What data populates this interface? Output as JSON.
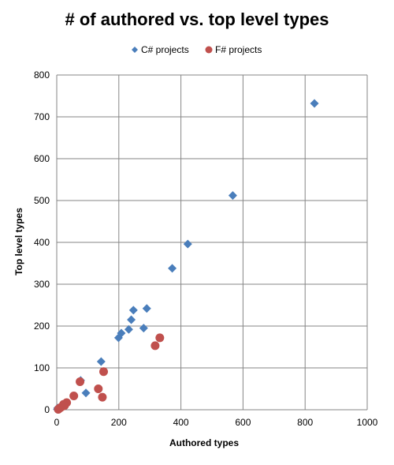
{
  "chart_data": {
    "type": "scatter",
    "title": "# of authored vs. top level types",
    "xlabel": "Authored types",
    "ylabel": "Top level types",
    "xlim": [
      0,
      1000
    ],
    "ylim": [
      0,
      800
    ],
    "xticks": [
      0,
      200,
      400,
      600,
      800,
      1000
    ],
    "yticks": [
      0,
      100,
      200,
      300,
      400,
      500,
      600,
      700,
      800
    ],
    "grid": true,
    "legend_position": "top",
    "series": [
      {
        "name": "C# projects",
        "marker": "diamond",
        "color": "#4a7ebb",
        "points": [
          [
            830,
            732
          ],
          [
            567,
            512
          ],
          [
            422,
            396
          ],
          [
            372,
            338
          ],
          [
            290,
            242
          ],
          [
            247,
            238
          ],
          [
            240,
            215
          ],
          [
            232,
            192
          ],
          [
            280,
            195
          ],
          [
            208,
            183
          ],
          [
            199,
            172
          ],
          [
            143,
            115
          ],
          [
            94,
            40
          ],
          [
            77,
            70
          ],
          [
            3,
            4
          ],
          [
            2,
            1
          ]
        ]
      },
      {
        "name": "F# projects",
        "marker": "circle",
        "color": "#c0504d",
        "points": [
          [
            332,
            172
          ],
          [
            317,
            153
          ],
          [
            151,
            91
          ],
          [
            134,
            50
          ],
          [
            147,
            30
          ],
          [
            75,
            67
          ],
          [
            55,
            33
          ],
          [
            32,
            17
          ],
          [
            25,
            10
          ],
          [
            18,
            8
          ],
          [
            12,
            5
          ],
          [
            8,
            3
          ],
          [
            5,
            1
          ],
          [
            22,
            13
          ]
        ]
      }
    ]
  }
}
